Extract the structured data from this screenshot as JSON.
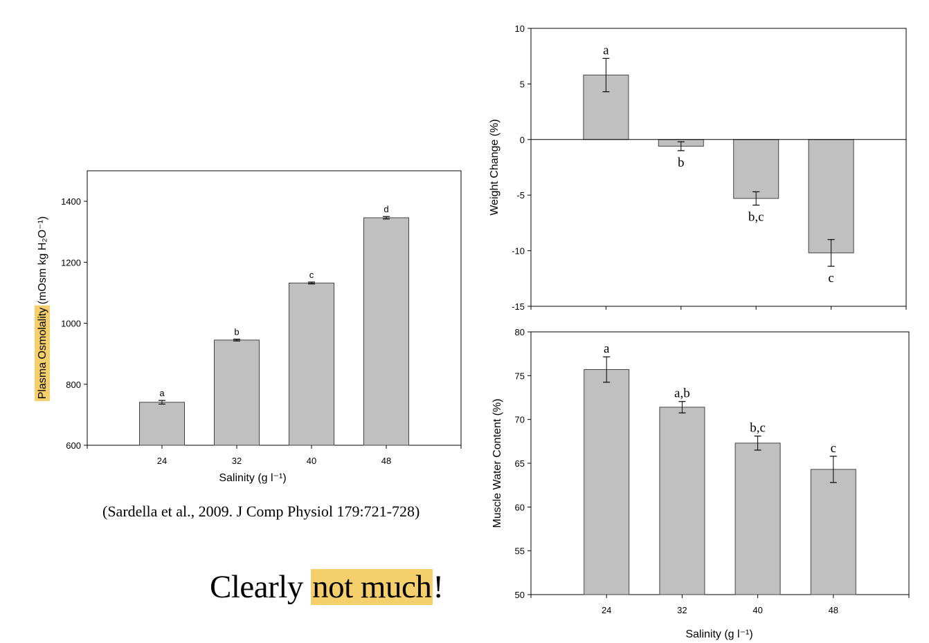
{
  "highlight_color": "#f5cf6b",
  "bar_color": "#c0c0c0",
  "citation": "(Sardella et al., 2009. J Comp Physiol 179:721-728)",
  "headline": {
    "before": "Clearly ",
    "highlight": "not much",
    "after": "!"
  },
  "chart_data": [
    {
      "type": "bar",
      "categories": [
        "24",
        "32",
        "40",
        "48"
      ],
      "values": [
        741,
        945,
        1132,
        1346
      ],
      "errors": [
        6,
        3,
        3,
        4
      ],
      "letters": [
        "a",
        "b",
        "c",
        "d"
      ],
      "xlabel": "Salinity (g l⁻¹)",
      "ylabel_highlight": "Plasma Osmolality",
      "ylabel": "(mOsm kg H₂O⁻¹)",
      "ylim": [
        600,
        1500
      ],
      "yticks": [
        600,
        800,
        1000,
        1200,
        1400
      ],
      "grid": false
    },
    {
      "type": "bar",
      "categories": [
        "24",
        "32",
        "40",
        "48"
      ],
      "values": [
        5.8,
        -0.6,
        -5.3,
        -10.2
      ],
      "errors": [
        1.5,
        0.4,
        0.6,
        1.2
      ],
      "letters": [
        "a",
        "b",
        "b,c",
        "c"
      ],
      "xlabel": "",
      "ylabel": "Weight Change (%)",
      "ylim": [
        -15,
        10
      ],
      "yticks": [
        -15,
        -10,
        -5,
        0,
        5,
        10
      ],
      "show_xtick_labels": false,
      "grid": false
    },
    {
      "type": "bar",
      "categories": [
        "24",
        "32",
        "40",
        "48"
      ],
      "values": [
        75.7,
        71.4,
        67.3,
        64.3
      ],
      "errors": [
        1.45,
        0.65,
        0.8,
        1.5
      ],
      "letters": [
        "a",
        "a,b",
        "b,c",
        "c"
      ],
      "xlabel": "Salinity (g l⁻¹)",
      "ylabel": "Muscle Water Content (%)",
      "ylim": [
        50,
        80
      ],
      "yticks": [
        50,
        55,
        60,
        65,
        70,
        75,
        80
      ],
      "grid": false
    }
  ]
}
